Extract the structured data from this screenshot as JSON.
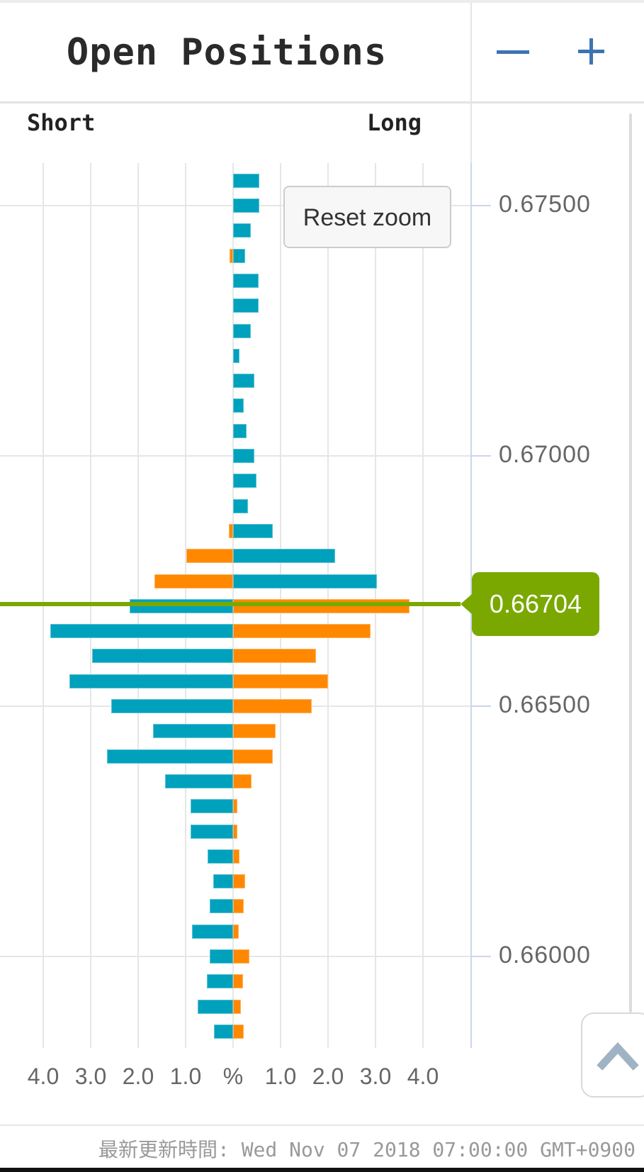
{
  "header": {
    "title": "Open Positions",
    "zoom_out_icon": "minus",
    "zoom_in_icon": "plus"
  },
  "chart": {
    "side_labels": {
      "short": "Short",
      "long": "Long"
    },
    "reset_zoom_label": "Reset zoom",
    "current_price_label": "0.66704"
  },
  "footer": {
    "updated_text": "最新更新時間: Wed Nov 07 2018 07:00:00 GMT+0900"
  },
  "scroll_top_icon": "chevron-up",
  "chart_data": {
    "type": "bar",
    "orientation": "horizontal-pyramid",
    "title": "Open Positions",
    "unit": "%",
    "current_price": 0.66704,
    "x_axis": {
      "labels": [
        "4.0",
        "3.0",
        "2.0",
        "1.0",
        "%",
        "1.0",
        "2.0",
        "3.0",
        "4.0"
      ],
      "values": [
        -4,
        -3,
        -2,
        -1,
        0,
        1,
        2,
        3,
        4
      ],
      "range": [
        -5,
        5
      ],
      "grid": true
    },
    "y_axis": {
      "ticks": [
        {
          "price": 0.675,
          "label": "0.67500"
        },
        {
          "price": 0.67,
          "label": "0.67000"
        },
        {
          "price": 0.665,
          "label": "0.66500"
        },
        {
          "price": 0.66,
          "label": "0.66000"
        }
      ],
      "top_price": 0.67585,
      "bottom_price": 0.65817,
      "row_step": 0.0005
    },
    "colors": {
      "short_above": "#ff8800",
      "long_above": "#00a1bc",
      "short_below": "#00a1bc",
      "long_below": "#ff8800",
      "current_price_green": "#7aa800",
      "axis_blue": "#ccd6eb",
      "grid_gray": "#e6e6e6"
    },
    "rows": [
      {
        "price": 0.6755,
        "short_pct": 0.0,
        "long_pct": 0.55
      },
      {
        "price": 0.675,
        "short_pct": 0.0,
        "long_pct": 0.55
      },
      {
        "price": 0.6745,
        "short_pct": 0.0,
        "long_pct": 0.37
      },
      {
        "price": 0.674,
        "short_pct": 0.08,
        "long_pct": 0.25
      },
      {
        "price": 0.6735,
        "short_pct": 0.0,
        "long_pct": 0.54
      },
      {
        "price": 0.673,
        "short_pct": 0.0,
        "long_pct": 0.54
      },
      {
        "price": 0.6725,
        "short_pct": 0.0,
        "long_pct": 0.38
      },
      {
        "price": 0.672,
        "short_pct": 0.0,
        "long_pct": 0.13
      },
      {
        "price": 0.6715,
        "short_pct": 0.0,
        "long_pct": 0.44
      },
      {
        "price": 0.671,
        "short_pct": 0.0,
        "long_pct": 0.22
      },
      {
        "price": 0.6705,
        "short_pct": 0.0,
        "long_pct": 0.29
      },
      {
        "price": 0.67,
        "short_pct": 0.0,
        "long_pct": 0.44
      },
      {
        "price": 0.6695,
        "short_pct": 0.0,
        "long_pct": 0.49
      },
      {
        "price": 0.669,
        "short_pct": 0.0,
        "long_pct": 0.31
      },
      {
        "price": 0.6685,
        "short_pct": 0.09,
        "long_pct": 0.84
      },
      {
        "price": 0.668,
        "short_pct": 0.98,
        "long_pct": 2.14
      },
      {
        "price": 0.6675,
        "short_pct": 1.66,
        "long_pct": 3.03
      },
      {
        "price": 0.667,
        "short_pct": 2.18,
        "long_pct": 3.71
      },
      {
        "price": 0.6665,
        "short_pct": 3.84,
        "long_pct": 2.89
      },
      {
        "price": 0.666,
        "short_pct": 2.96,
        "long_pct": 1.74
      },
      {
        "price": 0.6655,
        "short_pct": 3.44,
        "long_pct": 2.0
      },
      {
        "price": 0.665,
        "short_pct": 2.56,
        "long_pct": 1.65
      },
      {
        "price": 0.6645,
        "short_pct": 1.69,
        "long_pct": 0.89
      },
      {
        "price": 0.664,
        "short_pct": 2.65,
        "long_pct": 0.84
      },
      {
        "price": 0.6635,
        "short_pct": 1.43,
        "long_pct": 0.39
      },
      {
        "price": 0.663,
        "short_pct": 0.89,
        "long_pct": 0.09
      },
      {
        "price": 0.6625,
        "short_pct": 0.89,
        "long_pct": 0.09
      },
      {
        "price": 0.662,
        "short_pct": 0.53,
        "long_pct": 0.13
      },
      {
        "price": 0.6615,
        "short_pct": 0.41,
        "long_pct": 0.25
      },
      {
        "price": 0.661,
        "short_pct": 0.49,
        "long_pct": 0.22
      },
      {
        "price": 0.6605,
        "short_pct": 0.86,
        "long_pct": 0.12
      },
      {
        "price": 0.66,
        "short_pct": 0.49,
        "long_pct": 0.34
      },
      {
        "price": 0.6595,
        "short_pct": 0.55,
        "long_pct": 0.21
      },
      {
        "price": 0.659,
        "short_pct": 0.75,
        "long_pct": 0.17
      },
      {
        "price": 0.6585,
        "short_pct": 0.4,
        "long_pct": 0.22
      }
    ]
  }
}
